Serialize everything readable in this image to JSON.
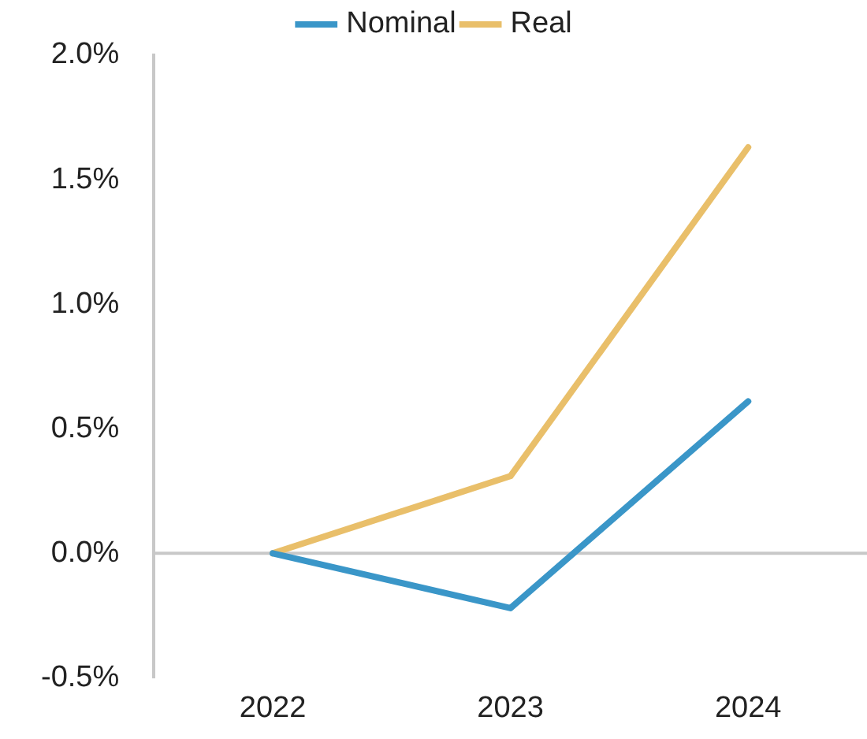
{
  "chart_data": {
    "type": "line",
    "categories": [
      "2022",
      "2023",
      "2024"
    ],
    "series": [
      {
        "name": "Nominal",
        "color": "#3a96c8",
        "values": [
          0,
          -0.22,
          0.61
        ]
      },
      {
        "name": "Real",
        "color": "#e9bf6a",
        "values": [
          0,
          0.31,
          1.63
        ]
      }
    ],
    "ylim": [
      -0.5,
      2.0
    ],
    "yticks": [
      {
        "value": -0.5,
        "label": "-0.5%"
      },
      {
        "value": 0,
        "label": "0.0%"
      },
      {
        "value": 0.5,
        "label": "0.5%"
      },
      {
        "value": 1,
        "label": "1.0%"
      },
      {
        "value": 1.5,
        "label": "1.5%"
      },
      {
        "value": 2,
        "label": "2.0%"
      }
    ],
    "ref_lines": [
      {
        "axis": "y",
        "value": 0,
        "color": "#c8c8c8"
      }
    ],
    "grid": false,
    "legend": "top",
    "marker": "none",
    "line_style": "solid"
  }
}
